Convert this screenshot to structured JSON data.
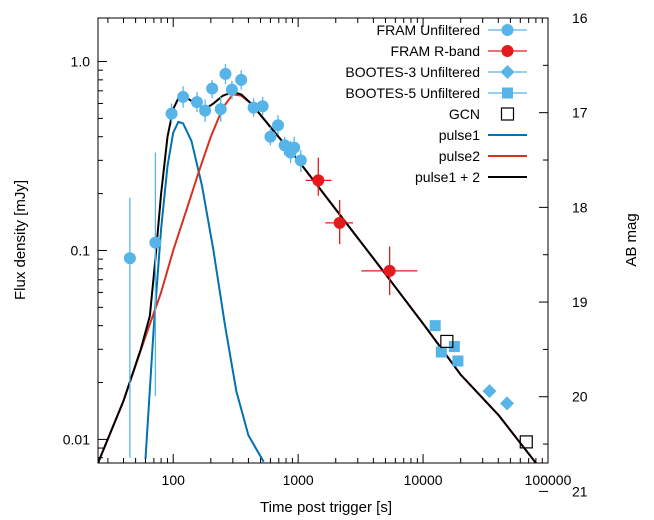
{
  "chart_data": {
    "type": "scatter",
    "title": "",
    "xlabel": "Time post trigger [s]",
    "ylabel": "Flux density [mJy]",
    "y2label": "AB mag",
    "xscale": "log",
    "yscale": "log",
    "xlim": [
      25,
      100000
    ],
    "ylim": [
      0.0075,
      1.7
    ],
    "y2lim": [
      16,
      20.7
    ],
    "grid": false,
    "legend_position": "top-right",
    "xticks": [
      {
        "value": 100,
        "label": "100"
      },
      {
        "value": 1000,
        "label": "1000"
      },
      {
        "value": 10000,
        "label": "10000"
      },
      {
        "value": 100000,
        "label": "100000"
      }
    ],
    "yticks": [
      {
        "value": 0.01,
        "label": "0.01"
      },
      {
        "value": 0.1,
        "label": "0.1"
      },
      {
        "value": 1.0,
        "label": "1.0"
      }
    ],
    "y2ticks": [
      {
        "value": 16,
        "label": "16"
      },
      {
        "value": 17,
        "label": "17"
      },
      {
        "value": 18,
        "label": "18"
      },
      {
        "value": 19,
        "label": "19"
      },
      {
        "value": 20,
        "label": "20"
      },
      {
        "value": 21,
        "label": "21"
      }
    ],
    "series": [
      {
        "name": "FRAM Unfiltered",
        "kind": "points",
        "marker": "circle",
        "color": "#56b4e9",
        "points": [
          {
            "x": 45,
            "y": 0.091,
            "ylo": 0.008,
            "yhi": 0.19
          },
          {
            "x": 72,
            "y": 0.11,
            "ylo": 0.017,
            "yhi": 0.33
          },
          {
            "x": 97,
            "y": 0.53,
            "ylo": 0.47,
            "yhi": 0.6
          },
          {
            "x": 120,
            "y": 0.65,
            "ylo": 0.57,
            "yhi": 0.74
          },
          {
            "x": 155,
            "y": 0.61,
            "ylo": 0.54,
            "yhi": 0.69
          },
          {
            "x": 180,
            "y": 0.55,
            "ylo": 0.48,
            "yhi": 0.63
          },
          {
            "x": 205,
            "y": 0.72,
            "ylo": 0.64,
            "yhi": 0.8
          },
          {
            "x": 240,
            "y": 0.56,
            "ylo": 0.48,
            "yhi": 0.65
          },
          {
            "x": 262,
            "y": 0.86,
            "ylo": 0.76,
            "yhi": 0.97
          },
          {
            "x": 295,
            "y": 0.71,
            "ylo": 0.63,
            "yhi": 0.79
          },
          {
            "x": 350,
            "y": 0.8,
            "ylo": 0.71,
            "yhi": 0.9
          },
          {
            "x": 440,
            "y": 0.57,
            "ylo": 0.51,
            "yhi": 0.64
          },
          {
            "x": 520,
            "y": 0.58,
            "ylo": 0.52,
            "yhi": 0.65
          },
          {
            "x": 600,
            "y": 0.4,
            "ylo": 0.36,
            "yhi": 0.45
          },
          {
            "x": 690,
            "y": 0.46,
            "ylo": 0.41,
            "yhi": 0.52
          },
          {
            "x": 780,
            "y": 0.36,
            "ylo": 0.32,
            "yhi": 0.4
          },
          {
            "x": 870,
            "y": 0.33,
            "ylo": 0.29,
            "yhi": 0.38
          },
          {
            "x": 930,
            "y": 0.35,
            "ylo": 0.31,
            "yhi": 0.4
          },
          {
            "x": 1050,
            "y": 0.3,
            "ylo": 0.26,
            "yhi": 0.34
          }
        ]
      },
      {
        "name": "FRAM R-band",
        "kind": "points",
        "marker": "circle",
        "color": "#e41a1c",
        "points": [
          {
            "x": 1450,
            "y": 0.235,
            "xlo": 1150,
            "xhi": 1850,
            "ylo": 0.195,
            "yhi": 0.31
          },
          {
            "x": 2150,
            "y": 0.14,
            "xlo": 1650,
            "xhi": 2750,
            "ylo": 0.108,
            "yhi": 0.185
          },
          {
            "x": 5400,
            "y": 0.078,
            "xlo": 3200,
            "xhi": 9000,
            "ylo": 0.058,
            "yhi": 0.105
          }
        ]
      },
      {
        "name": "BOOTES-3 Unfiltered",
        "kind": "points",
        "marker": "diamond",
        "color": "#56b4e9",
        "points": [
          {
            "x": 34000,
            "y": 0.018
          },
          {
            "x": 47000,
            "y": 0.0155
          }
        ]
      },
      {
        "name": "BOOTES-5 Unfiltered",
        "kind": "points",
        "marker": "square",
        "color": "#56b4e9",
        "points": [
          {
            "x": 12500,
            "y": 0.04
          },
          {
            "x": 14000,
            "y": 0.029
          },
          {
            "x": 17800,
            "y": 0.031
          },
          {
            "x": 19000,
            "y": 0.026
          }
        ]
      },
      {
        "name": "GCN",
        "kind": "points",
        "marker": "open-square",
        "color": "#000000",
        "points": [
          {
            "x": 15500,
            "y": 0.033
          },
          {
            "x": 67000,
            "y": 0.0097
          }
        ]
      },
      {
        "name": "pulse1",
        "kind": "line",
        "color": "#0072b2",
        "points": [
          {
            "x": 60,
            "y": 0.0079
          },
          {
            "x": 70,
            "y": 0.04
          },
          {
            "x": 80,
            "y": 0.13
          },
          {
            "x": 90,
            "y": 0.28
          },
          {
            "x": 100,
            "y": 0.42
          },
          {
            "x": 110,
            "y": 0.48
          },
          {
            "x": 120,
            "y": 0.47
          },
          {
            "x": 140,
            "y": 0.38
          },
          {
            "x": 170,
            "y": 0.22
          },
          {
            "x": 210,
            "y": 0.1
          },
          {
            "x": 260,
            "y": 0.04
          },
          {
            "x": 320,
            "y": 0.018
          },
          {
            "x": 400,
            "y": 0.0105
          },
          {
            "x": 530,
            "y": 0.0076
          }
        ]
      },
      {
        "name": "pulse2",
        "kind": "line",
        "color": "#d7301f",
        "points": [
          {
            "x": 25,
            "y": 0.0075
          },
          {
            "x": 40,
            "y": 0.016
          },
          {
            "x": 60,
            "y": 0.035
          },
          {
            "x": 80,
            "y": 0.06
          },
          {
            "x": 100,
            "y": 0.1
          },
          {
            "x": 130,
            "y": 0.17
          },
          {
            "x": 160,
            "y": 0.26
          },
          {
            "x": 200,
            "y": 0.4
          },
          {
            "x": 250,
            "y": 0.57
          },
          {
            "x": 300,
            "y": 0.67
          },
          {
            "x": 350,
            "y": 0.66
          },
          {
            "x": 420,
            "y": 0.6
          },
          {
            "x": 600,
            "y": 0.45
          },
          {
            "x": 1000,
            "y": 0.3
          },
          {
            "x": 2000,
            "y": 0.165
          },
          {
            "x": 5000,
            "y": 0.075
          },
          {
            "x": 10000,
            "y": 0.041
          },
          {
            "x": 20000,
            "y": 0.022
          },
          {
            "x": 40000,
            "y": 0.0135
          },
          {
            "x": 80000,
            "y": 0.0075
          }
        ]
      },
      {
        "name": "pulse1 + 2",
        "kind": "line",
        "color": "#000000",
        "points": [
          {
            "x": 25,
            "y": 0.0075
          },
          {
            "x": 40,
            "y": 0.016
          },
          {
            "x": 55,
            "y": 0.03
          },
          {
            "x": 65,
            "y": 0.045
          },
          {
            "x": 72,
            "y": 0.09
          },
          {
            "x": 80,
            "y": 0.2
          },
          {
            "x": 90,
            "y": 0.4
          },
          {
            "x": 100,
            "y": 0.56
          },
          {
            "x": 110,
            "y": 0.64
          },
          {
            "x": 125,
            "y": 0.65
          },
          {
            "x": 150,
            "y": 0.6
          },
          {
            "x": 180,
            "y": 0.56
          },
          {
            "x": 210,
            "y": 0.6
          },
          {
            "x": 250,
            "y": 0.66
          },
          {
            "x": 300,
            "y": 0.69
          },
          {
            "x": 350,
            "y": 0.67
          },
          {
            "x": 420,
            "y": 0.6
          },
          {
            "x": 600,
            "y": 0.45
          },
          {
            "x": 1000,
            "y": 0.3
          },
          {
            "x": 2000,
            "y": 0.165
          },
          {
            "x": 5000,
            "y": 0.075
          },
          {
            "x": 10000,
            "y": 0.041
          },
          {
            "x": 20000,
            "y": 0.022
          },
          {
            "x": 40000,
            "y": 0.0135
          },
          {
            "x": 80000,
            "y": 0.0075
          }
        ]
      }
    ]
  }
}
